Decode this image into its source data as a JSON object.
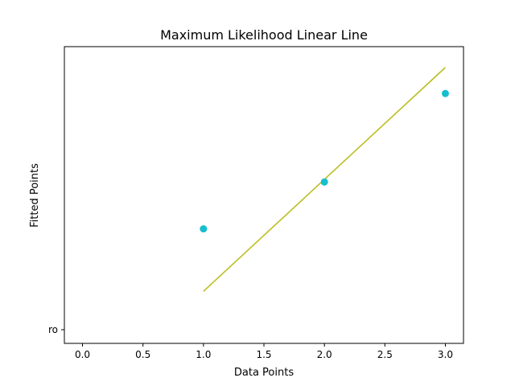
{
  "chart_data": {
    "type": "scatter",
    "title": "Maximum Likelihood Linear Line",
    "xlabel": "Data Points",
    "ylabel": "Fitted Points",
    "xlim": [
      -0.15,
      3.15
    ],
    "x_ticks": [
      0.0,
      0.5,
      1.0,
      1.5,
      2.0,
      2.5,
      3.0
    ],
    "x_tick_labels": [
      "0.0",
      "0.5",
      "1.0",
      "1.5",
      "2.0",
      "2.5",
      "3.0"
    ],
    "y_tick_labels": [
      "ro"
    ],
    "grid": false,
    "series": [
      {
        "kind": "scatter",
        "color": "#17becf",
        "x": [
          1.0,
          2.0,
          3.0
        ],
        "y": [
          3.1,
          3.55,
          4.4
        ]
      },
      {
        "kind": "line",
        "color": "#bcbd22",
        "x": [
          1.0,
          3.0
        ],
        "y": [
          2.5,
          4.65
        ]
      }
    ]
  }
}
